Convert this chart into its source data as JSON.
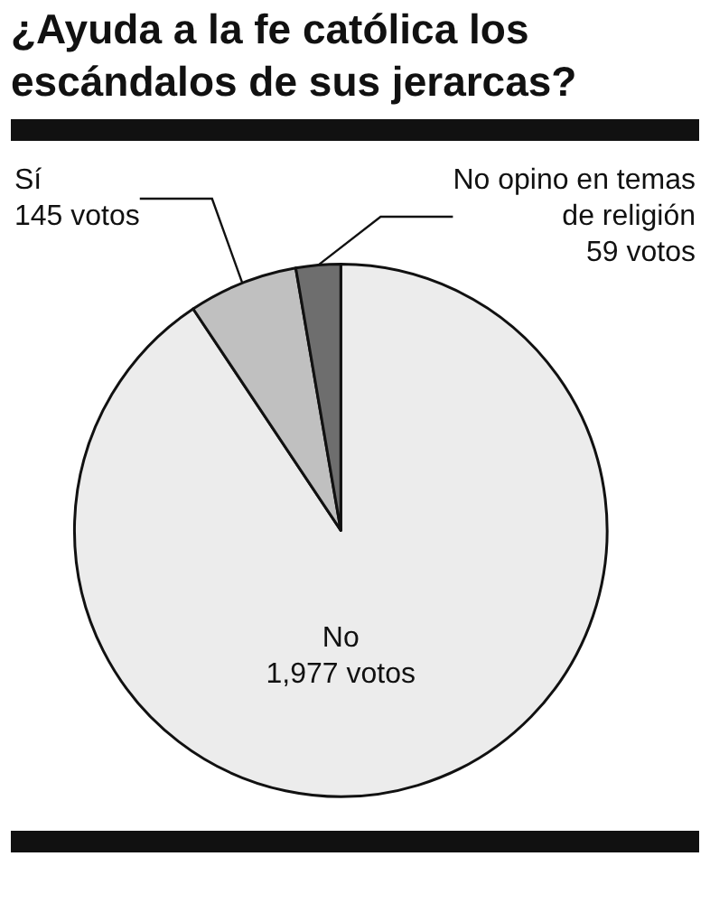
{
  "chart_data": {
    "type": "pie",
    "title": "¿Ayuda a la fe católica los escándalos de sus jerarcas?",
    "categories": [
      "No",
      "Sí",
      "No opino en temas de religión"
    ],
    "values": [
      1977,
      145,
      59
    ],
    "value_labels": [
      "1,977 votos",
      "145 votos",
      "59 votos"
    ],
    "colors": [
      "#ececec",
      "#c0c0c0",
      "#6e6e6e"
    ],
    "legend": false
  }
}
